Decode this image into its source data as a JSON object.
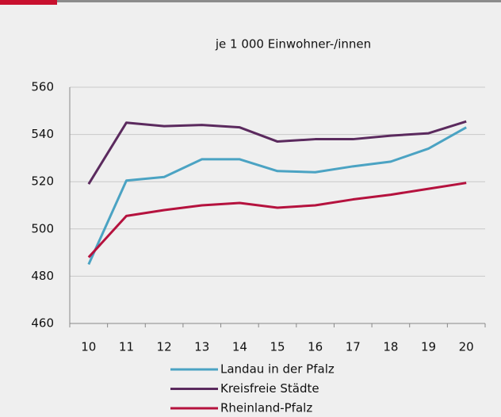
{
  "chart_data": {
    "type": "line",
    "title": "je 1 000 Einwohner-/innen",
    "categories": [
      "10",
      "11",
      "12",
      "13",
      "14",
      "15",
      "16",
      "17",
      "18",
      "19",
      "20"
    ],
    "series": [
      {
        "name": "Landau in der Pfalz",
        "color": "#4ba3c3",
        "values": [
          485,
          520.5,
          522,
          529.5,
          529.5,
          524.5,
          524,
          526.5,
          528.5,
          534,
          543
        ]
      },
      {
        "name": "Kreisfreie Städte",
        "color": "#5b2a5e",
        "values": [
          519,
          545,
          543.5,
          544,
          543,
          537,
          538,
          538,
          539.5,
          540.5,
          545.5
        ]
      },
      {
        "name": "Rheinland-Pfalz",
        "color": "#b5123e",
        "values": [
          488,
          505.5,
          508,
          510,
          511,
          509,
          510,
          512.5,
          514.5,
          517,
          519.5
        ]
      }
    ],
    "ylim": [
      460,
      560
    ],
    "yticks": [
      460,
      480,
      500,
      520,
      540,
      560
    ],
    "grid": true
  }
}
